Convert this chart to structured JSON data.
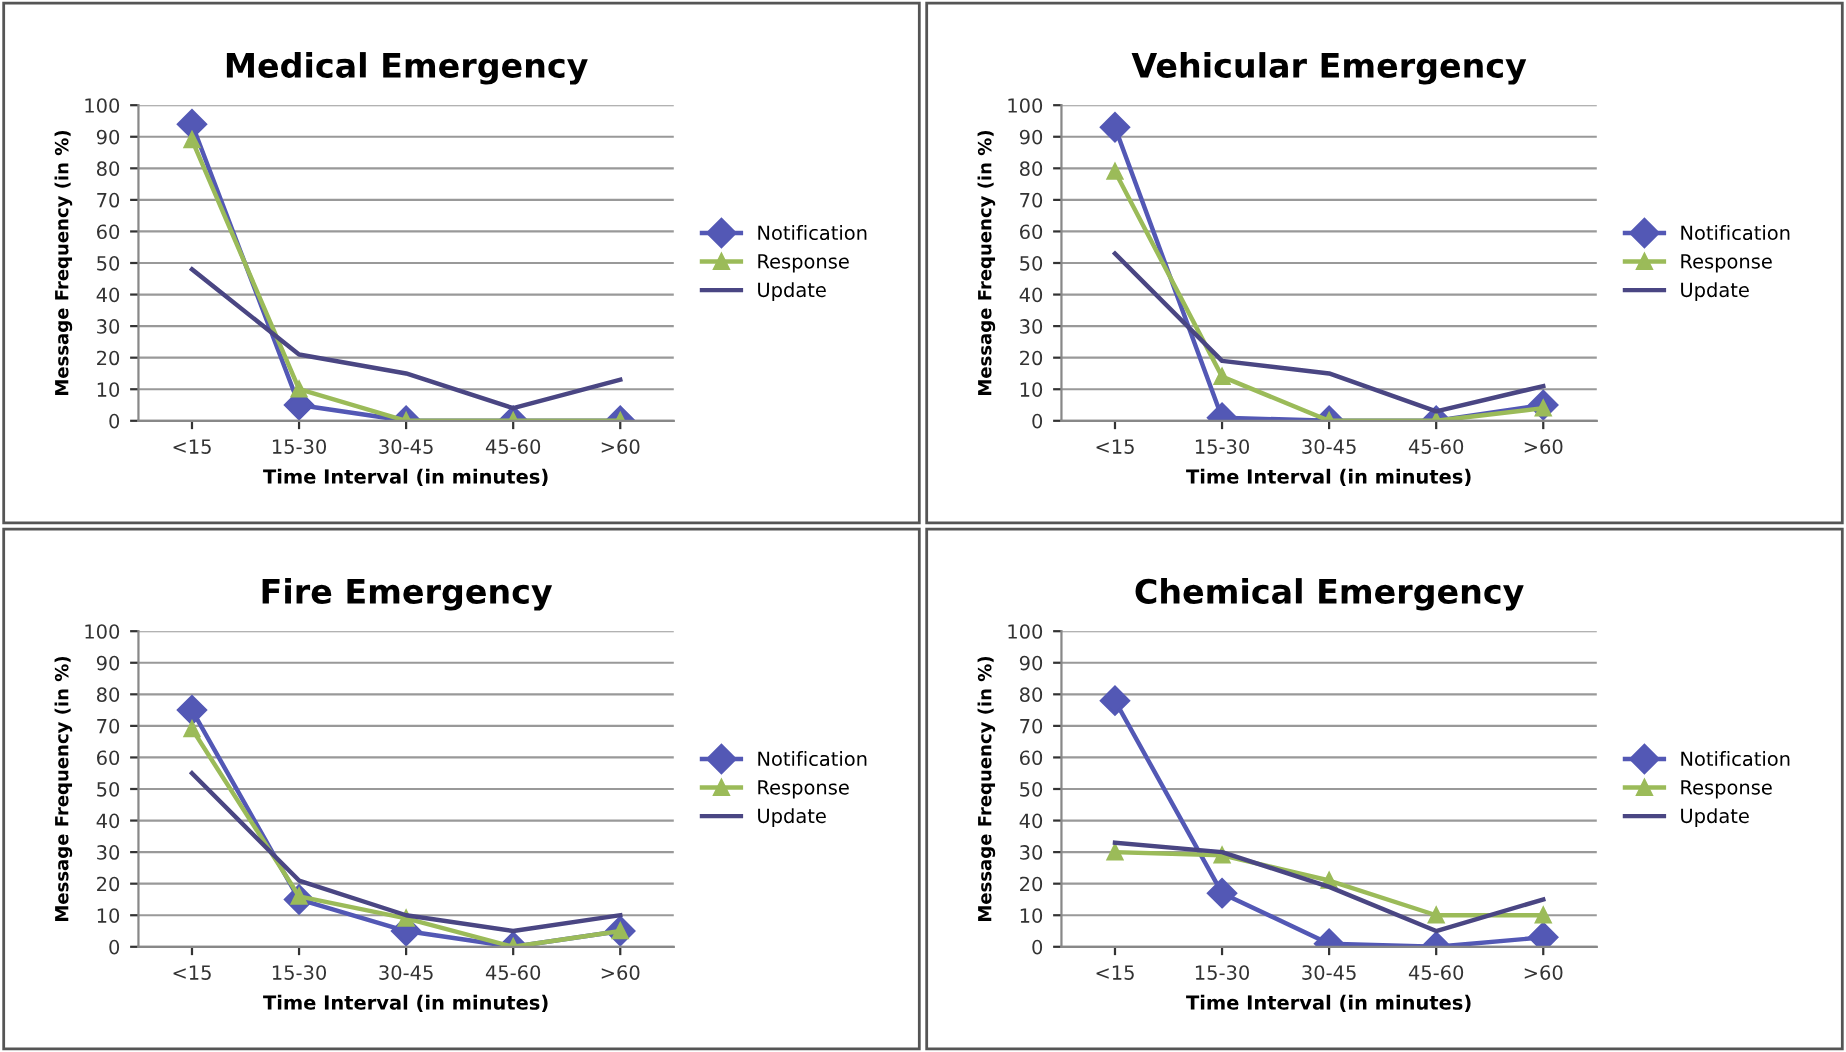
{
  "chart_data": [
    {
      "type": "line",
      "title": "Medical Emergency",
      "xlabel": "Time Interval (in minutes)",
      "ylabel": "Message Frequency (in %)",
      "categories": [
        "<15",
        "15-30",
        "30-45",
        "45-60",
        ">60"
      ],
      "ylim": [
        0,
        100
      ],
      "yticks": [
        0,
        10,
        20,
        30,
        40,
        50,
        60,
        70,
        80,
        90,
        100
      ],
      "grid": "y",
      "legend": "right",
      "series": [
        {
          "name": "Notification",
          "color": "#5358b5",
          "marker": "diamond",
          "values": [
            94,
            5,
            0,
            0,
            0
          ]
        },
        {
          "name": "Response",
          "color": "#9bbb59",
          "marker": "triangle",
          "values": [
            89,
            10,
            0,
            0,
            0
          ]
        },
        {
          "name": "Update",
          "color": "#4a4683",
          "marker": "none",
          "values": [
            48,
            21,
            15,
            4,
            13
          ]
        }
      ]
    },
    {
      "type": "line",
      "title": "Vehicular Emergency",
      "xlabel": "Time Interval (in minutes)",
      "ylabel": "Message Frequency (in %)",
      "categories": [
        "<15",
        "15-30",
        "30-45",
        "45-60",
        ">60"
      ],
      "ylim": [
        0,
        100
      ],
      "yticks": [
        0,
        10,
        20,
        30,
        40,
        50,
        60,
        70,
        80,
        90,
        100
      ],
      "grid": "y",
      "legend": "right",
      "series": [
        {
          "name": "Notification",
          "color": "#5358b5",
          "marker": "diamond",
          "values": [
            93,
            1,
            0,
            0,
            5
          ]
        },
        {
          "name": "Response",
          "color": "#9bbb59",
          "marker": "triangle",
          "values": [
            79,
            14,
            0,
            0,
            4
          ]
        },
        {
          "name": "Update",
          "color": "#4a4683",
          "marker": "none",
          "values": [
            53,
            19,
            15,
            3,
            11
          ]
        }
      ]
    },
    {
      "type": "line",
      "title": "Fire Emergency",
      "xlabel": "Time Interval (in minutes)",
      "ylabel": "Message Frequency (in %)",
      "categories": [
        "<15",
        "15-30",
        "30-45",
        "45-60",
        ">60"
      ],
      "ylim": [
        0,
        100
      ],
      "yticks": [
        0,
        10,
        20,
        30,
        40,
        50,
        60,
        70,
        80,
        90,
        100
      ],
      "grid": "y",
      "legend": "right",
      "series": [
        {
          "name": "Notification",
          "color": "#5358b5",
          "marker": "diamond",
          "values": [
            75,
            15,
            5,
            0,
            5
          ]
        },
        {
          "name": "Response",
          "color": "#9bbb59",
          "marker": "triangle",
          "values": [
            69,
            16,
            9,
            0,
            5
          ]
        },
        {
          "name": "Update",
          "color": "#4a4683",
          "marker": "none",
          "values": [
            55,
            21,
            10,
            5,
            10
          ]
        }
      ]
    },
    {
      "type": "line",
      "title": "Chemical Emergency",
      "xlabel": "Time Interval (in minutes)",
      "ylabel": "Message Frequency (in %)",
      "categories": [
        "<15",
        "15-30",
        "30-45",
        "45-60",
        ">60"
      ],
      "ylim": [
        0,
        100
      ],
      "yticks": [
        0,
        10,
        20,
        30,
        40,
        50,
        60,
        70,
        80,
        90,
        100
      ],
      "grid": "y",
      "legend": "right",
      "series": [
        {
          "name": "Notification",
          "color": "#5358b5",
          "marker": "diamond",
          "values": [
            78,
            17,
            1,
            0,
            3
          ]
        },
        {
          "name": "Response",
          "color": "#9bbb59",
          "marker": "triangle",
          "values": [
            30,
            29,
            21,
            10,
            10
          ]
        },
        {
          "name": "Update",
          "color": "#4a4683",
          "marker": "none",
          "values": [
            33,
            30,
            19,
            5,
            15
          ]
        }
      ]
    }
  ]
}
